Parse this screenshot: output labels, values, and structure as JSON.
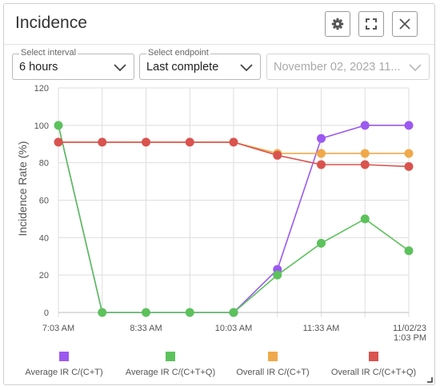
{
  "header": {
    "title": "Incidence",
    "settings_icon": "gear-icon",
    "fullscreen_icon": "expand-icon",
    "close_icon": "close-icon"
  },
  "controls": {
    "interval": {
      "label": "Select interval",
      "value": "6 hours"
    },
    "endpoint": {
      "label": "Select endpoint",
      "value": "Last complete"
    },
    "date": {
      "value": "November 02, 2023 11...",
      "disabled": true
    }
  },
  "chart_data": {
    "type": "line",
    "ylabel": "Incidence Rate (%)",
    "xlabel": "",
    "ylim": [
      0,
      120
    ],
    "yticks": [
      0,
      20,
      40,
      60,
      80,
      100,
      120
    ],
    "grid": true,
    "legend_position": "bottom",
    "x": [
      "7:03 AM",
      "7:48 AM",
      "8:33 AM",
      "9:18 AM",
      "10:03 AM",
      "10:48 AM",
      "11:33 AM",
      "12:18 PM",
      "1:03 PM"
    ],
    "xtick_labels": [
      {
        "index": 0,
        "lines": [
          "7:03 AM"
        ]
      },
      {
        "index": 2,
        "lines": [
          "8:33 AM"
        ]
      },
      {
        "index": 4,
        "lines": [
          "10:03 AM"
        ]
      },
      {
        "index": 6,
        "lines": [
          "11:33 AM"
        ]
      },
      {
        "index": 8,
        "lines": [
          "11/02/23",
          "1:03 PM"
        ]
      }
    ],
    "series": [
      {
        "name": "Average IR C/(C+T)",
        "color": "#9b59f0",
        "values": [
          100,
          0,
          0,
          0,
          0,
          23,
          93,
          100,
          100
        ],
        "markers": [
          false,
          false,
          false,
          false,
          true,
          true,
          true,
          true,
          true
        ]
      },
      {
        "name": "Average IR C/(C+T+Q)",
        "color": "#5cc25c",
        "values": [
          100,
          0,
          0,
          0,
          0,
          20,
          37,
          50,
          33
        ],
        "markers": [
          true,
          true,
          true,
          true,
          true,
          true,
          true,
          true,
          true
        ]
      },
      {
        "name": "Overall IR C/(C+T)",
        "color": "#f0a94a",
        "values": [
          91,
          91,
          91,
          91,
          91,
          85,
          85,
          85,
          85
        ],
        "markers": [
          false,
          false,
          false,
          false,
          false,
          true,
          true,
          true,
          true
        ]
      },
      {
        "name": "Overall IR C/(C+T+Q)",
        "color": "#d9534f",
        "values": [
          91,
          91,
          91,
          91,
          91,
          84,
          79,
          79,
          78
        ],
        "markers": [
          true,
          true,
          true,
          true,
          true,
          true,
          true,
          true,
          true
        ]
      }
    ]
  }
}
